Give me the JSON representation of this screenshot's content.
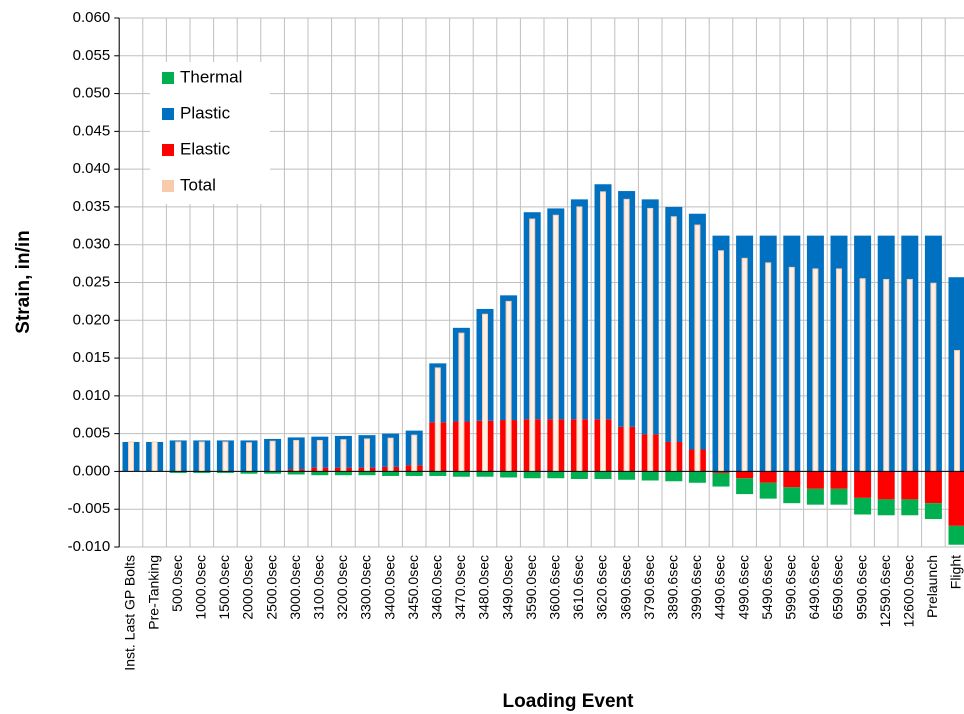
{
  "chart_data": {
    "type": "stacked-bar",
    "xlabel": "Loading Event",
    "ylabel": "Strain, in/in",
    "categories": [
      "Inst. Last GP Bolts",
      "Pre-Tanking",
      "500.0sec",
      "1000.0sec",
      "1500.0sec",
      "2000.0sec",
      "2500.0sec",
      "3000.0sec",
      "3100.0sec",
      "3200.0sec",
      "3300.0sec",
      "3400.0sec",
      "3450.0sec",
      "3460.0sec",
      "3470.0sec",
      "3480.0sec",
      "3490.0sec",
      "3590.0sec",
      "3600.6sec",
      "3610.6sec",
      "3620.6sec",
      "3690.6sec",
      "3790.6sec",
      "3890.6sec",
      "3990.6sec",
      "4490.6sec",
      "4990.6sec",
      "5490.6sec",
      "5990.6sec",
      "6490.6sec",
      "6590.6sec",
      "9590.6sec",
      "12590.6sec",
      "12600.0sec",
      "Prelaunch",
      "Flight"
    ],
    "series": [
      {
        "name": "Total",
        "color": "#f8cbad",
        "overlay": true,
        "values": [
          0.0039,
          0.0039,
          0.0039,
          0.0039,
          0.0039,
          0.0038,
          0.004,
          0.0041,
          0.0041,
          0.0042,
          0.0043,
          0.0044,
          0.0048,
          0.0137,
          0.0183,
          0.0208,
          0.0225,
          0.0334,
          0.0339,
          0.035,
          0.037,
          0.036,
          0.0348,
          0.0337,
          0.0326,
          0.0292,
          0.0282,
          0.0276,
          0.027,
          0.0268,
          0.0268,
          0.0255,
          0.0254,
          0.0254,
          0.0249,
          0.016
        ]
      },
      {
        "name": "Elastic",
        "color": "#ff0000",
        "values": [
          0,
          0,
          0,
          0,
          0,
          0,
          0,
          0.0003,
          0.0005,
          0.0005,
          0.0005,
          0.0006,
          0.0008,
          0.0065,
          0.0066,
          0.0067,
          0.0068,
          0.0069,
          0.0069,
          0.0069,
          0.0069,
          0.0059,
          0.0049,
          0.0039,
          0.0029,
          -0.0002,
          -0.0009,
          -0.0015,
          -0.0021,
          -0.0023,
          -0.0023,
          -0.0035,
          -0.0037,
          -0.0037,
          -0.0042,
          -0.0072
        ]
      },
      {
        "name": "Plastic",
        "color": "#0070c0",
        "values": [
          0.0039,
          0.0039,
          0.0041,
          0.0041,
          0.0041,
          0.0041,
          0.0043,
          0.0042,
          0.0041,
          0.0042,
          0.0043,
          0.0044,
          0.0046,
          0.0078,
          0.0124,
          0.0148,
          0.0165,
          0.0274,
          0.0279,
          0.0291,
          0.0311,
          0.0312,
          0.0311,
          0.0311,
          0.0312,
          0.0312,
          0.0312,
          0.0312,
          0.0312,
          0.0312,
          0.0312,
          0.0312,
          0.0312,
          0.0312,
          0.0312,
          0.0257
        ]
      },
      {
        "name": "Thermal",
        "color": "#00b050",
        "values": [
          0,
          0,
          -0.0002,
          -0.0002,
          -0.0002,
          -0.0003,
          -0.0003,
          -0.0004,
          -0.0005,
          -0.0005,
          -0.0005,
          -0.0006,
          -0.0006,
          -0.0006,
          -0.0007,
          -0.0007,
          -0.0008,
          -0.0009,
          -0.0009,
          -0.001,
          -0.001,
          -0.0011,
          -0.0012,
          -0.0013,
          -0.0015,
          -0.0018,
          -0.0021,
          -0.0021,
          -0.0021,
          -0.0021,
          -0.0021,
          -0.0022,
          -0.0021,
          -0.0021,
          -0.0021,
          -0.0025
        ]
      }
    ],
    "ylim": [
      -0.01,
      0.06
    ],
    "yticks": [
      {
        "value": -0.01,
        "label": "-0.010"
      },
      {
        "value": -0.005,
        "label": "-0.005"
      },
      {
        "value": 0,
        "label": "0.000"
      },
      {
        "value": 0.005,
        "label": "0.005"
      },
      {
        "value": 0.01,
        "label": "0.010"
      },
      {
        "value": 0.015,
        "label": "0.015"
      },
      {
        "value": 0.02,
        "label": "0.020"
      },
      {
        "value": 0.025,
        "label": "0.025"
      },
      {
        "value": 0.03,
        "label": "0.030"
      },
      {
        "value": 0.035,
        "label": "0.035"
      },
      {
        "value": 0.04,
        "label": "0.040"
      },
      {
        "value": 0.045,
        "label": "0.045"
      },
      {
        "value": 0.05,
        "label": "0.050"
      },
      {
        "value": 0.055,
        "label": "0.055"
      },
      {
        "value": 0.06,
        "label": "0.060"
      }
    ],
    "grid": true,
    "legend": "upper-left",
    "legend_reversed": true
  }
}
